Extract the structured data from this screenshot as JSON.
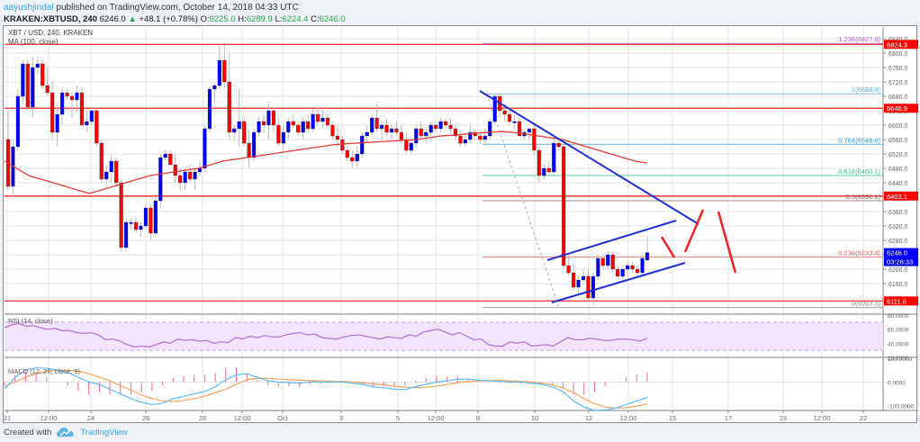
{
  "header": {
    "user": "aayushjindal",
    "published": "published on TradingView.com, October 14, 2018 04:33 UTC",
    "symbol": "KRAKEN:XBTUSD, 240",
    "last": "6246.0",
    "change": "+48.1 (+0.78%)",
    "o_label": "O:",
    "o": "6225.0",
    "h_label": "H:",
    "h": "6289.9",
    "l_label": "L:",
    "l": "6224.4",
    "c_label": "C:",
    "c": "6246.0"
  },
  "legend": {
    "main": "XBT / USD, 240, KRAKEN",
    "ma": "MA (100, close)",
    "rsi": "RSI (14, close)",
    "macd": "MACD (12, 26, close, 9)"
  },
  "footer": {
    "created_with": "Created with",
    "brand": "TradingView"
  },
  "colors": {
    "up": "#0000ff",
    "down": "#ff0000",
    "ma": "#e53935",
    "hline": "#ff3b3b",
    "trend": "#1f2fd6",
    "rsi": "#b46fd0",
    "rsi_band": "#f1e3fb",
    "macd": "#5bbcf5",
    "signal": "#f5a15a",
    "hist": "#ee5fa0",
    "grid": "#e6e6e6"
  },
  "chart_data": [
    {
      "type": "candlestick",
      "title": "XBT / USD, 240, KRAKEN",
      "xlabel": "",
      "ylabel": "Price (USD)",
      "ylim": [
        6060,
        6850
      ],
      "x_ticks": [
        "21",
        "12:00",
        "24",
        "26",
        "28",
        "12:00",
        "Oct",
        "3",
        "5",
        "12:00",
        "8",
        "10",
        "12",
        "12:00",
        "15",
        "17",
        "19",
        "12:00",
        "22"
      ],
      "y_ticks": [
        6080,
        6120,
        6160,
        6200,
        6240,
        6280,
        6320,
        6360,
        6400,
        6440,
        6480,
        6520,
        6560,
        6600,
        6640,
        6680,
        6720,
        6760,
        6800,
        6840
      ],
      "price_labels": [
        {
          "value": "6824.3",
          "price": 6824.3,
          "color": "#ff0000"
        },
        {
          "value": "6646.9",
          "price": 6646.9,
          "color": "#ff0000"
        },
        {
          "value": "6403.1",
          "price": 6403.1,
          "color": "#ff0000"
        },
        {
          "value": "6246.0",
          "price": 6246.0,
          "color": "#0000ff"
        },
        {
          "value": "6111.6",
          "price": 6111.6,
          "color": "#ff0000"
        }
      ],
      "countdown": "03:26:33",
      "horizontal_lines": [
        6824.3,
        6646.9,
        6403.1,
        6111.6
      ],
      "fibonacci": [
        {
          "level": "1.236",
          "price": 6827.0,
          "label": "1.236(6827.0)",
          "color": "#b65ad6"
        },
        {
          "level": "1",
          "price": 6686.9,
          "label": "1(6686.9)",
          "color": "#5bb4e6"
        },
        {
          "level": "0.764",
          "price": 6546.8,
          "label": "0.764(6546.8)",
          "color": "#3a9ad6"
        },
        {
          "level": "0.618",
          "price": 6460.1,
          "label": "0.618(6460.1)",
          "color": "#33c48a"
        },
        {
          "level": "0.5",
          "price": 6390.1,
          "label": "0.5(6390.1)",
          "color": "#8a6a6a"
        },
        {
          "level": "0.236",
          "price": 6233.4,
          "label": "0.236(6233.4)",
          "color": "#e06060"
        },
        {
          "level": "0",
          "price": 6093.3,
          "label": "0(6093.3)",
          "color": "#888888"
        }
      ],
      "candles_ohlc": [
        [
          6560,
          6640,
          6420,
          6430
        ],
        [
          6430,
          6560,
          6400,
          6540
        ],
        [
          6540,
          6700,
          6530,
          6680
        ],
        [
          6680,
          6780,
          6660,
          6770
        ],
        [
          6770,
          6780,
          6640,
          6650
        ],
        [
          6650,
          6790,
          6620,
          6760
        ],
        [
          6760,
          6790,
          6740,
          6770
        ],
        [
          6770,
          6780,
          6700,
          6710
        ],
        [
          6710,
          6760,
          6680,
          6690
        ],
        [
          6690,
          6720,
          6560,
          6580
        ],
        [
          6580,
          6660,
          6540,
          6630
        ],
        [
          6630,
          6700,
          6600,
          6690
        ],
        [
          6690,
          6700,
          6670,
          6680
        ],
        [
          6680,
          6690,
          6620,
          6670
        ],
        [
          6670,
          6710,
          6640,
          6690
        ],
        [
          6690,
          6700,
          6600,
          6600
        ],
        [
          6600,
          6640,
          6580,
          6610
        ],
        [
          6610,
          6650,
          6600,
          6640
        ],
        [
          6640,
          6650,
          6540,
          6550
        ],
        [
          6550,
          6560,
          6440,
          6450
        ],
        [
          6450,
          6490,
          6430,
          6470
        ],
        [
          6470,
          6520,
          6440,
          6500
        ],
        [
          6500,
          6510,
          6430,
          6440
        ],
        [
          6440,
          6450,
          6250,
          6260
        ],
        [
          6260,
          6340,
          6250,
          6330
        ],
        [
          6330,
          6340,
          6310,
          6330
        ],
        [
          6330,
          6340,
          6300,
          6310
        ],
        [
          6310,
          6330,
          6290,
          6320
        ],
        [
          6320,
          6380,
          6310,
          6370
        ],
        [
          6370,
          6380,
          6280,
          6300
        ],
        [
          6300,
          6400,
          6290,
          6390
        ],
        [
          6390,
          6520,
          6370,
          6510
        ],
        [
          6510,
          6530,
          6500,
          6520
        ],
        [
          6520,
          6530,
          6490,
          6490
        ],
        [
          6490,
          6520,
          6440,
          6460
        ],
        [
          6460,
          6480,
          6420,
          6440
        ],
        [
          6440,
          6480,
          6420,
          6470
        ],
        [
          6470,
          6490,
          6440,
          6450
        ],
        [
          6450,
          6480,
          6420,
          6470
        ],
        [
          6470,
          6500,
          6460,
          6480
        ],
        [
          6480,
          6600,
          6470,
          6590
        ],
        [
          6590,
          6710,
          6580,
          6700
        ],
        [
          6700,
          6720,
          6660,
          6710
        ],
        [
          6710,
          6820,
          6700,
          6780
        ],
        [
          6780,
          6830,
          6700,
          6720
        ],
        [
          6720,
          6800,
          6560,
          6580
        ],
        [
          6580,
          6600,
          6560,
          6590
        ],
        [
          6590,
          6700,
          6540,
          6610
        ],
        [
          6610,
          6620,
          6540,
          6550
        ],
        [
          6550,
          6590,
          6480,
          6510
        ],
        [
          6510,
          6590,
          6500,
          6580
        ],
        [
          6580,
          6620,
          6570,
          6610
        ],
        [
          6610,
          6630,
          6580,
          6600
        ],
        [
          6600,
          6660,
          6560,
          6640
        ],
        [
          6640,
          6650,
          6580,
          6600
        ],
        [
          6600,
          6620,
          6540,
          6550
        ],
        [
          6550,
          6600,
          6530,
          6580
        ],
        [
          6580,
          6620,
          6560,
          6610
        ],
        [
          6610,
          6630,
          6590,
          6600
        ],
        [
          6600,
          6610,
          6570,
          6580
        ],
        [
          6580,
          6620,
          6560,
          6610
        ],
        [
          6610,
          6630,
          6580,
          6590
        ],
        [
          6590,
          6640,
          6580,
          6630
        ],
        [
          6630,
          6650,
          6600,
          6610
        ],
        [
          6610,
          6640,
          6590,
          6620
        ],
        [
          6620,
          6630,
          6590,
          6600
        ],
        [
          6600,
          6610,
          6560,
          6570
        ],
        [
          6570,
          6600,
          6540,
          6560
        ],
        [
          6560,
          6570,
          6520,
          6530
        ],
        [
          6530,
          6540,
          6500,
          6510
        ],
        [
          6510,
          6530,
          6480,
          6500
        ],
        [
          6500,
          6540,
          6480,
          6520
        ],
        [
          6520,
          6580,
          6510,
          6570
        ],
        [
          6570,
          6600,
          6550,
          6580
        ],
        [
          6580,
          6630,
          6570,
          6620
        ],
        [
          6620,
          6660,
          6580,
          6590
        ],
        [
          6590,
          6610,
          6560,
          6600
        ],
        [
          6600,
          6620,
          6570,
          6580
        ],
        [
          6580,
          6600,
          6560,
          6590
        ],
        [
          6590,
          6610,
          6570,
          6580
        ],
        [
          6580,
          6600,
          6550,
          6560
        ],
        [
          6560,
          6580,
          6520,
          6530
        ],
        [
          6530,
          6560,
          6520,
          6550
        ],
        [
          6550,
          6600,
          6540,
          6590
        ],
        [
          6590,
          6610,
          6560,
          6570
        ],
        [
          6570,
          6590,
          6550,
          6580
        ],
        [
          6580,
          6610,
          6570,
          6600
        ],
        [
          6600,
          6610,
          6580,
          6590
        ],
        [
          6590,
          6620,
          6580,
          6610
        ],
        [
          6610,
          6620,
          6590,
          6600
        ],
        [
          6600,
          6620,
          6580,
          6590
        ],
        [
          6590,
          6600,
          6560,
          6570
        ],
        [
          6570,
          6580,
          6540,
          6550
        ],
        [
          6550,
          6580,
          6540,
          6560
        ],
        [
          6560,
          6600,
          6550,
          6580
        ],
        [
          6580,
          6590,
          6560,
          6570
        ],
        [
          6570,
          6580,
          6550,
          6560
        ],
        [
          6560,
          6590,
          6550,
          6570
        ],
        [
          6570,
          6620,
          6560,
          6610
        ],
        [
          6610,
          6690,
          6600,
          6680
        ],
        [
          6680,
          6690,
          6620,
          6640
        ],
        [
          6640,
          6660,
          6610,
          6630
        ],
        [
          6630,
          6640,
          6600,
          6610
        ],
        [
          6610,
          6630,
          6590,
          6610
        ],
        [
          6610,
          6620,
          6570,
          6570
        ],
        [
          6570,
          6590,
          6560,
          6580
        ],
        [
          6580,
          6590,
          6560,
          6590
        ],
        [
          6590,
          6600,
          6520,
          6530
        ],
        [
          6530,
          6540,
          6440,
          6460
        ],
        [
          6460,
          6490,
          6450,
          6480
        ],
        [
          6480,
          6500,
          6460,
          6470
        ],
        [
          6470,
          6560,
          6460,
          6550
        ],
        [
          6550,
          6560,
          6530,
          6540
        ],
        [
          6540,
          6550,
          6200,
          6210
        ],
        [
          6210,
          6240,
          6180,
          6190
        ],
        [
          6190,
          6220,
          6140,
          6150
        ],
        [
          6150,
          6180,
          6130,
          6170
        ],
        [
          6170,
          6200,
          6160,
          6180
        ],
        [
          6180,
          6200,
          6110,
          6120
        ],
        [
          6120,
          6190,
          6100,
          6180
        ],
        [
          6180,
          6240,
          6170,
          6230
        ],
        [
          6230,
          6240,
          6200,
          6210
        ],
        [
          6210,
          6250,
          6200,
          6240
        ],
        [
          6240,
          6250,
          6190,
          6200
        ],
        [
          6200,
          6210,
          6170,
          6180
        ],
        [
          6180,
          6210,
          6170,
          6200
        ],
        [
          6200,
          6220,
          6180,
          6210
        ],
        [
          6210,
          6220,
          6190,
          6200
        ],
        [
          6200,
          6210,
          6180,
          6190
        ],
        [
          6190,
          6240,
          6180,
          6230
        ],
        [
          6225,
          6290,
          6224,
          6246
        ]
      ],
      "ma100": [
        6500,
        6480,
        6460,
        6450,
        6440,
        6430,
        6420,
        6410,
        6420,
        6430,
        6440,
        6450,
        6460,
        6465,
        6470,
        6475,
        6480,
        6490,
        6500,
        6505,
        6510,
        6515,
        6520,
        6525,
        6530,
        6535,
        6540,
        6545,
        6548,
        6550,
        6552,
        6554,
        6556,
        6558,
        6560,
        6565,
        6570,
        6572,
        6575,
        6578,
        6580,
        6582,
        6580,
        6575,
        6570,
        6565,
        6560,
        6550,
        6540,
        6530,
        6520,
        6510,
        6500,
        6495
      ],
      "drawn_trendlines": [
        {
          "name": "descending-resistance",
          "from": [
            532,
            100
          ],
          "to": [
            775,
            248
          ]
        },
        {
          "name": "channel-upper",
          "from": [
            607,
            288
          ],
          "to": [
            750,
            244
          ]
        },
        {
          "name": "channel-lower",
          "from": [
            612,
            335
          ],
          "to": [
            760,
            291
          ]
        }
      ],
      "projection_path": [
        [
          734,
          262
        ],
        [
          748,
          285
        ],
        [
          760,
          279
        ],
        [
          780,
          232
        ],
        [
          797,
          234
        ],
        [
          816,
          302
        ]
      ]
    },
    {
      "type": "line",
      "title": "RSI (14, close)",
      "ylim": [
        20,
        80
      ],
      "y_ticks": [
        "80.0000",
        "60.0000",
        "40.0000",
        "20.0000"
      ],
      "band": [
        30,
        70
      ],
      "values": [
        62,
        66,
        68,
        64,
        65,
        62,
        60,
        61,
        58,
        58,
        55,
        54,
        55,
        52,
        45,
        46,
        43,
        38,
        35,
        36,
        35,
        38,
        42,
        40,
        46,
        44,
        45,
        43,
        44,
        40,
        42,
        41,
        48,
        46,
        50,
        48,
        51,
        49,
        49,
        52,
        54,
        55,
        52,
        53,
        48,
        47,
        46,
        49,
        51,
        52,
        50,
        48,
        46,
        49,
        48,
        47,
        52,
        50,
        56,
        58,
        60,
        56,
        52,
        55,
        50,
        45,
        46,
        38,
        36,
        36,
        42,
        40,
        42,
        36,
        37,
        38,
        36,
        42,
        48,
        45,
        45,
        47,
        46,
        44,
        44,
        46,
        46,
        45,
        43,
        47
      ]
    },
    {
      "type": "line",
      "title": "MACD (12, 26, close, 9)",
      "ylim": [
        -120,
        100
      ],
      "y_ticks": [
        "100.0000",
        "0.0000",
        "-100.0000"
      ],
      "macd": [
        -30,
        20,
        50,
        60,
        58,
        50,
        40,
        20,
        0,
        -10,
        -30,
        -50,
        -70,
        -85,
        -95,
        -90,
        -70,
        -60,
        -50,
        -40,
        -20,
        10,
        30,
        35,
        20,
        5,
        0,
        -2,
        -5,
        0,
        0,
        0,
        0,
        -5,
        -10,
        -20,
        -25,
        -30,
        -32,
        -20,
        -10,
        0,
        5,
        12,
        12,
        8,
        5,
        3,
        0,
        0,
        -5,
        -10,
        -20,
        -40,
        -80,
        -105,
        -120,
        -118,
        -110,
        -95,
        -80,
        -65
      ],
      "signal": [
        -20,
        0,
        20,
        35,
        45,
        50,
        50,
        45,
        35,
        20,
        5,
        -15,
        -35,
        -55,
        -70,
        -80,
        -82,
        -78,
        -70,
        -60,
        -45,
        -30,
        -10,
        10,
        15,
        15,
        12,
        10,
        8,
        6,
        5,
        3,
        2,
        0,
        -3,
        -8,
        -12,
        -18,
        -22,
        -24,
        -22,
        -18,
        -10,
        -3,
        2,
        5,
        6,
        6,
        5,
        3,
        0,
        -5,
        -12,
        -25,
        -45,
        -70,
        -92,
        -105,
        -110,
        -108,
        -102,
        -92
      ],
      "histogram_note": "histogram bars = macd - signal"
    }
  ]
}
